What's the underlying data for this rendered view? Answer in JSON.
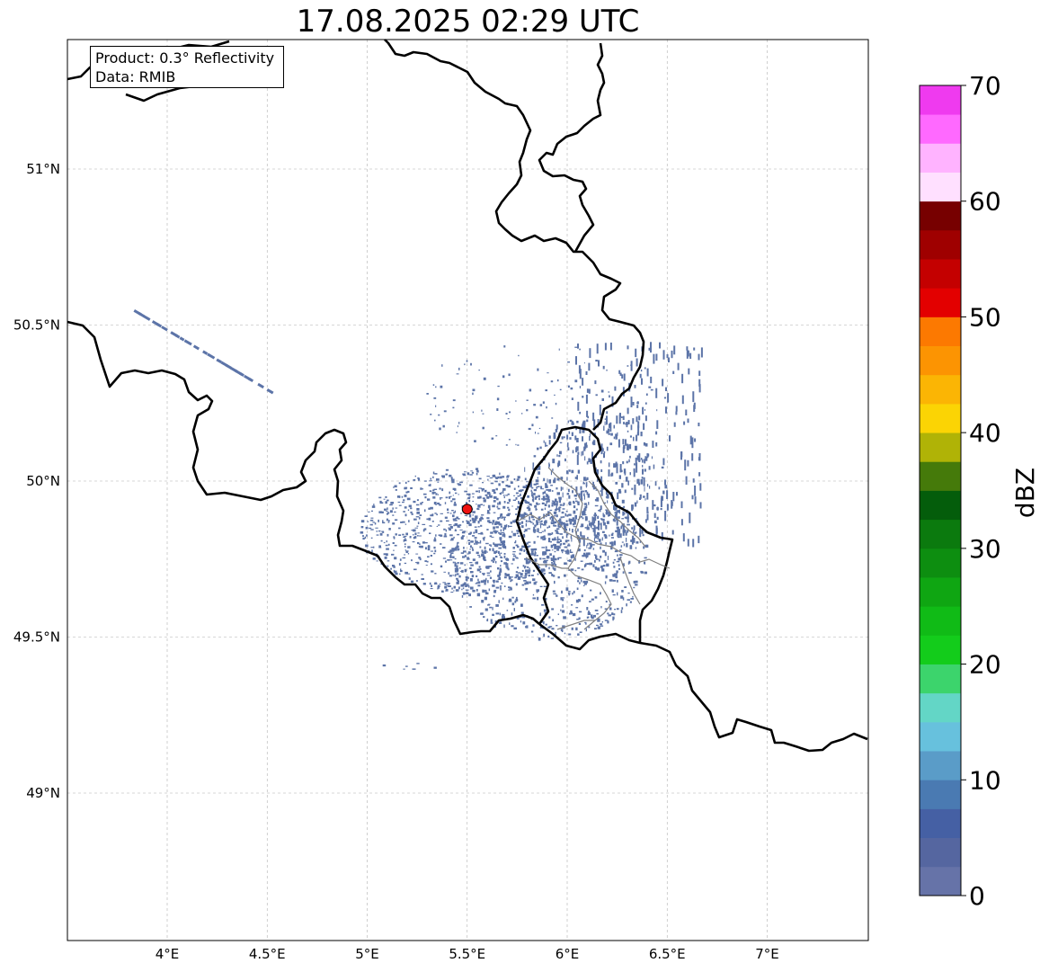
{
  "title": "17.08.2025 02:29 UTC",
  "info": {
    "product": "Product: 0.3° Reflectivity",
    "data": "Data: RMIB"
  },
  "axes": {
    "lon_ticks": [
      "4°E",
      "4.5°E",
      "5°E",
      "5.5°E",
      "6°E",
      "6.5°E",
      "7°E"
    ],
    "lat_ticks": [
      "51°N",
      "50.5°N",
      "50°N",
      "49.5°N",
      "49°N"
    ]
  },
  "colorbar": {
    "label": "dBZ",
    "ticks": [
      "0",
      "10",
      "20",
      "30",
      "40",
      "50",
      "60",
      "70"
    ],
    "colors": [
      "#6673a8",
      "#5566a0",
      "#4560a4",
      "#4a7ab2",
      "#5a9cc8",
      "#67c1dd",
      "#63d6c6",
      "#3cd46c",
      "#13cc1b",
      "#10bb16",
      "#0fa612",
      "#0d8e10",
      "#0b7a0e",
      "#045d0b",
      "#457a0a",
      "#b0b306",
      "#fbd404",
      "#fbb504",
      "#fc9402",
      "#fc7901",
      "#e30000",
      "#c40000",
      "#9f0000",
      "#770000",
      "#ffe0ff",
      "#ffb3ff",
      "#ff69ff",
      "#ef3aef"
    ]
  },
  "map": {
    "radar_site": {
      "lon": 5.5,
      "lat": 49.91,
      "color": "#ee1111"
    },
    "echo_color": "#5c74a8",
    "border_color": "#000000",
    "subborder_color": "#808080"
  }
}
